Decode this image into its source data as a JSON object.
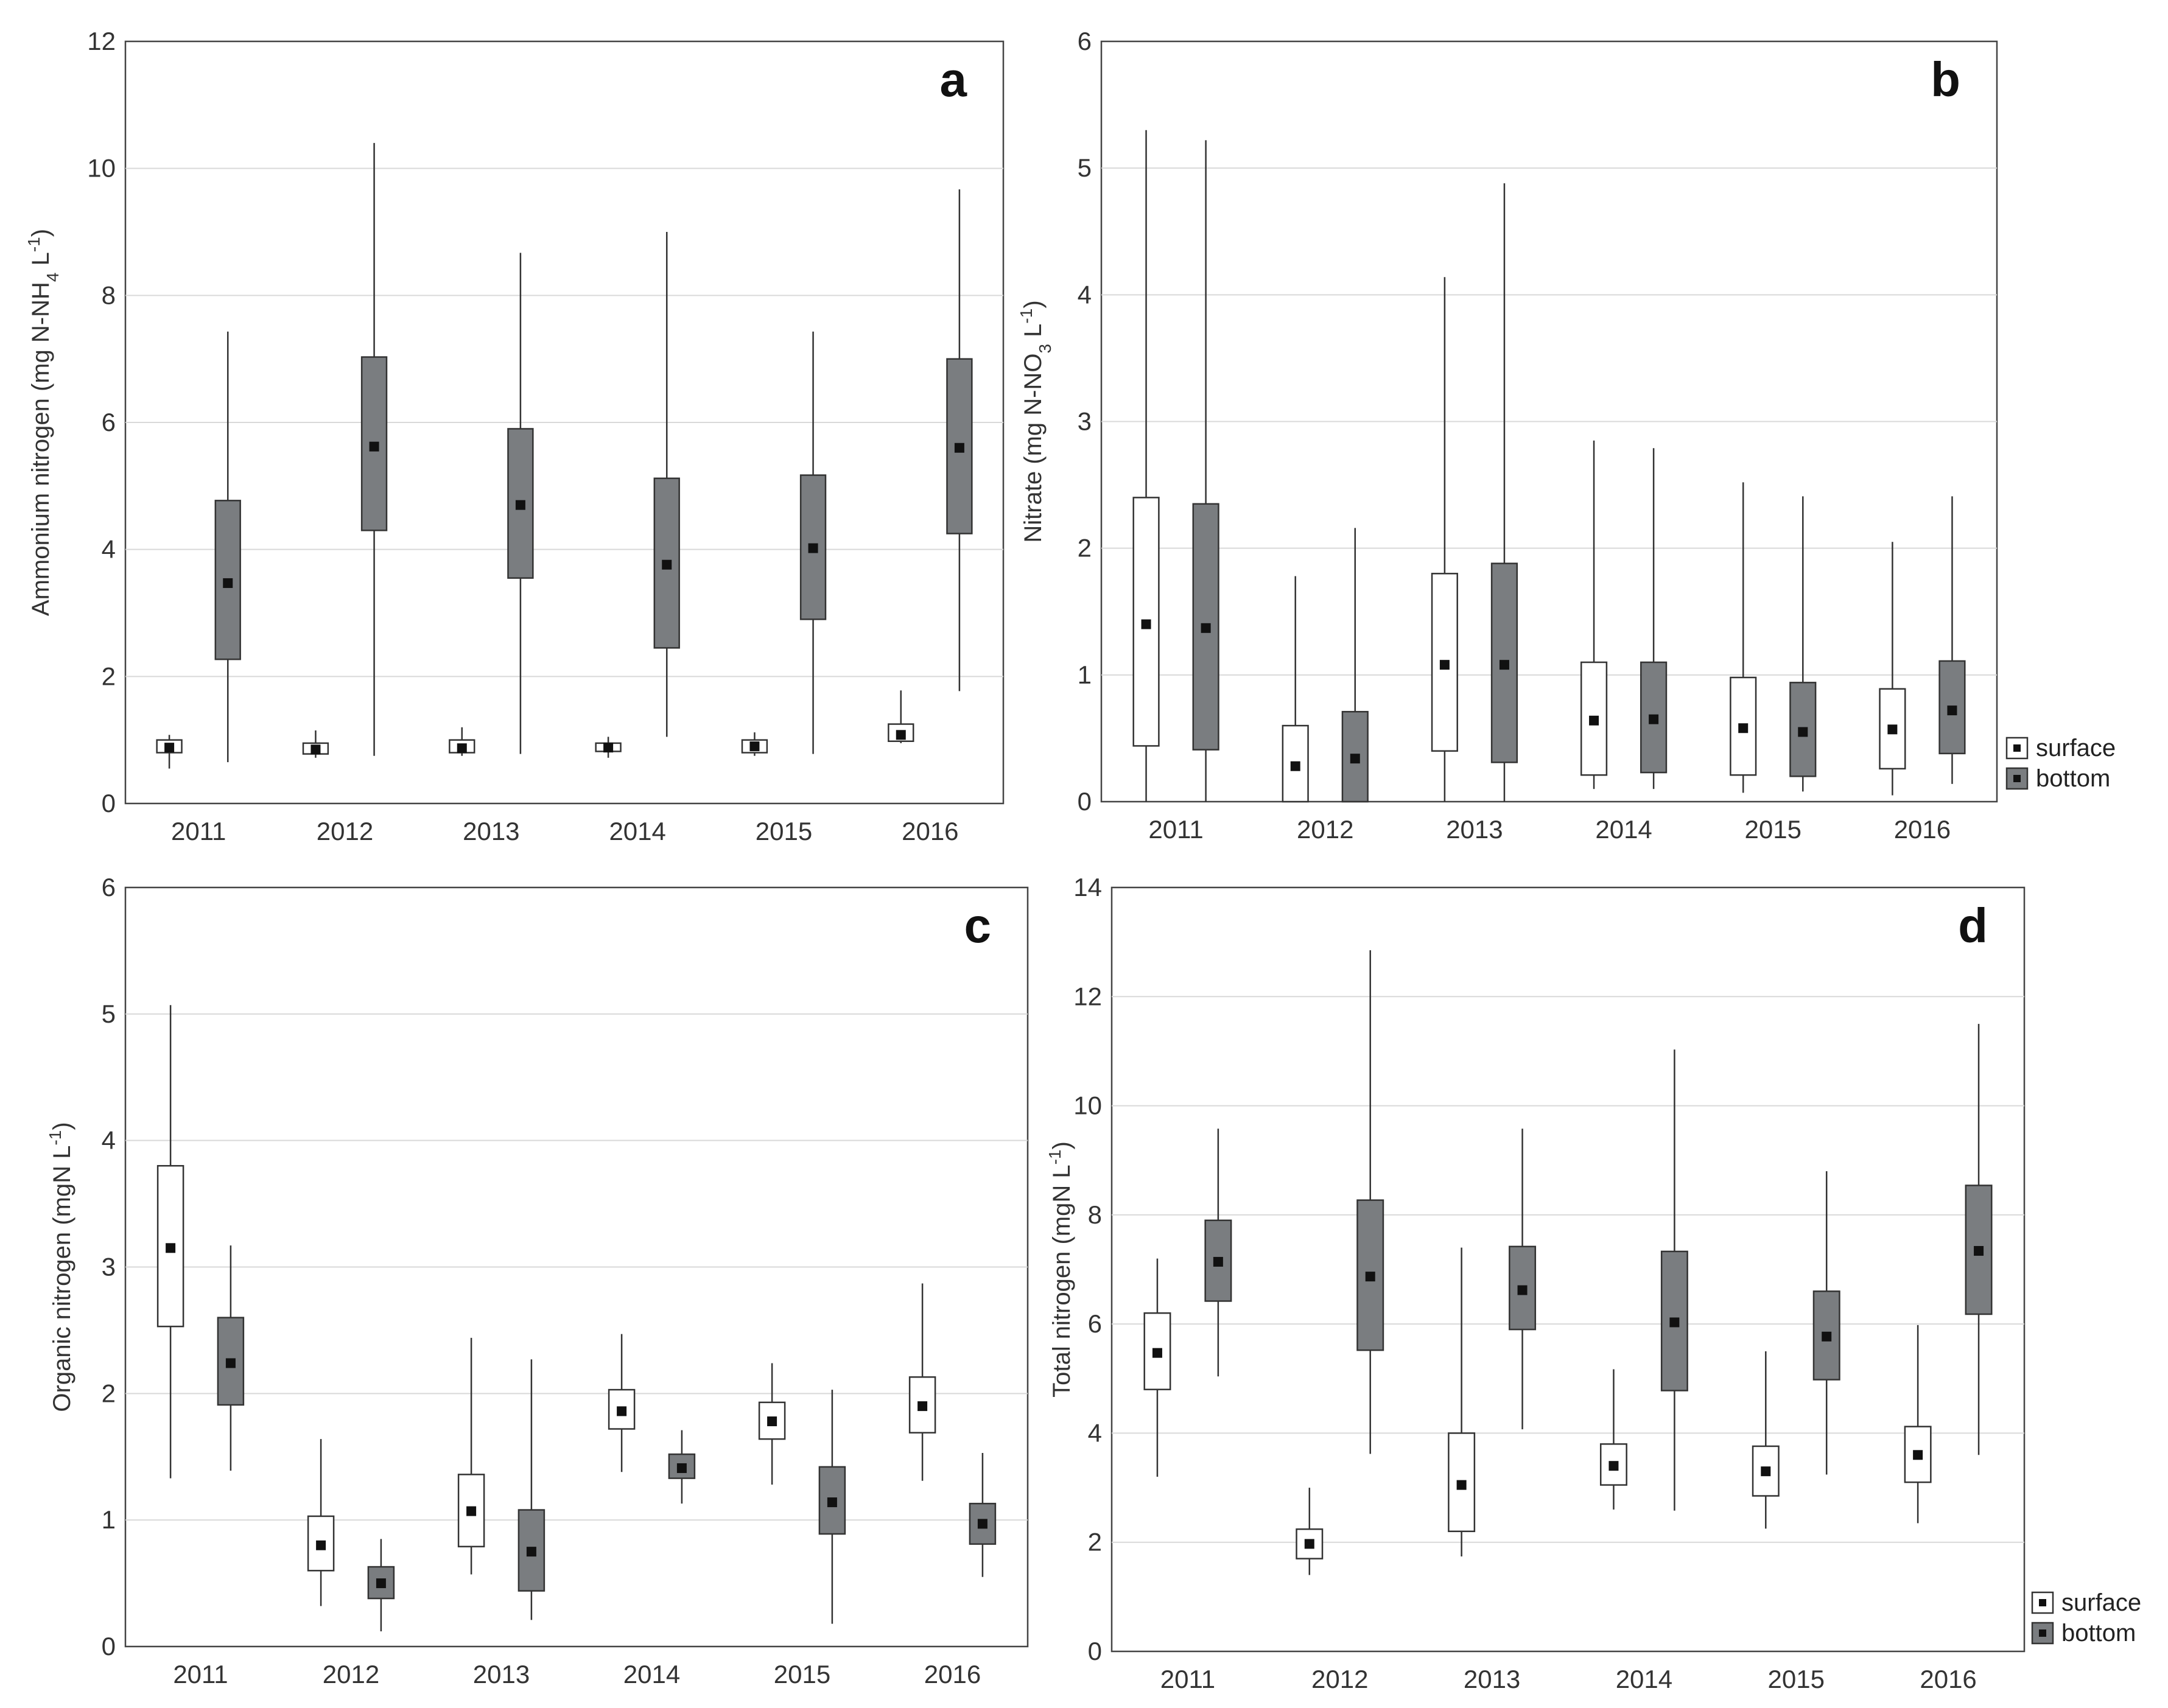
{
  "colors": {
    "surface_fill": "#ffffff",
    "bottom_fill": "#7a7d80",
    "median_marker": "#111111",
    "grid": "#d9d9d9"
  },
  "legend": {
    "surface": "surface",
    "bottom": "bottom"
  },
  "chart_data": [
    {
      "type": "boxplot",
      "panel": "a",
      "ylabel": "Ammonium nitrogen (mg N-NH",
      "ylabel_sub": "4",
      "ylabel_tail": " L",
      "ylabel_sup": "-1",
      "ylabel_end": ")",
      "ylim": [
        0,
        12
      ],
      "yticks": [
        0,
        2,
        4,
        6,
        8,
        10,
        12
      ],
      "categories": [
        "2011",
        "2012",
        "2013",
        "2014",
        "2015",
        "2016"
      ],
      "series": [
        {
          "name": "surface",
          "boxes": [
            {
              "min": 0.55,
              "q1": 0.8,
              "median": 0.88,
              "q3": 1.0,
              "max": 1.08
            },
            {
              "min": 0.72,
              "q1": 0.78,
              "median": 0.85,
              "q3": 0.95,
              "max": 1.15
            },
            {
              "min": 0.75,
              "q1": 0.8,
              "median": 0.87,
              "q3": 1.0,
              "max": 1.2
            },
            {
              "min": 0.72,
              "q1": 0.82,
              "median": 0.88,
              "q3": 0.95,
              "max": 1.05
            },
            {
              "min": 0.75,
              "q1": 0.8,
              "median": 0.9,
              "q3": 1.0,
              "max": 1.12
            },
            {
              "min": 0.95,
              "q1": 0.98,
              "median": 1.08,
              "q3": 1.25,
              "max": 1.78
            }
          ]
        },
        {
          "name": "bottom",
          "boxes": [
            {
              "min": 0.65,
              "q1": 2.27,
              "median": 3.47,
              "q3": 4.77,
              "max": 7.43
            },
            {
              "min": 0.75,
              "q1": 4.3,
              "median": 5.62,
              "q3": 7.03,
              "max": 10.4
            },
            {
              "min": 0.78,
              "q1": 3.55,
              "median": 4.7,
              "q3": 5.9,
              "max": 8.67
            },
            {
              "min": 1.05,
              "q1": 2.45,
              "median": 3.76,
              "q3": 5.12,
              "max": 9.0
            },
            {
              "min": 0.78,
              "q1": 2.9,
              "median": 4.02,
              "q3": 5.17,
              "max": 7.43
            },
            {
              "min": 1.77,
              "q1": 4.25,
              "median": 5.6,
              "q3": 7.0,
              "max": 9.67
            }
          ]
        }
      ]
    },
    {
      "type": "boxplot",
      "panel": "b",
      "ylabel": "Nitrate (mg N-NO",
      "ylabel_sub": "3",
      "ylabel_tail": " L",
      "ylabel_sup": "-1",
      "ylabel_end": ")",
      "ylim": [
        0,
        6
      ],
      "yticks": [
        0,
        1,
        2,
        3,
        4,
        5,
        6
      ],
      "categories": [
        "2011",
        "2012",
        "2013",
        "2014",
        "2015",
        "2016"
      ],
      "series": [
        {
          "name": "surface",
          "boxes": [
            {
              "min": 0,
              "q1": 0.44,
              "median": 1.4,
              "q3": 2.4,
              "max": 5.3
            },
            {
              "min": 0,
              "q1": 0,
              "median": 0.28,
              "q3": 0.6,
              "max": 1.78
            },
            {
              "min": 0,
              "q1": 0.4,
              "median": 1.08,
              "q3": 1.8,
              "max": 4.14
            },
            {
              "min": 0.1,
              "q1": 0.21,
              "median": 0.64,
              "q3": 1.1,
              "max": 2.85
            },
            {
              "min": 0.07,
              "q1": 0.21,
              "median": 0.58,
              "q3": 0.98,
              "max": 2.52
            },
            {
              "min": 0.05,
              "q1": 0.26,
              "median": 0.57,
              "q3": 0.89,
              "max": 2.05
            }
          ]
        },
        {
          "name": "bottom",
          "boxes": [
            {
              "min": 0,
              "q1": 0.41,
              "median": 1.37,
              "q3": 2.35,
              "max": 5.22
            },
            {
              "min": 0,
              "q1": 0,
              "median": 0.34,
              "q3": 0.71,
              "max": 2.16
            },
            {
              "min": 0,
              "q1": 0.31,
              "median": 1.08,
              "q3": 1.88,
              "max": 4.88
            },
            {
              "min": 0.1,
              "q1": 0.23,
              "median": 0.65,
              "q3": 1.1,
              "max": 2.79
            },
            {
              "min": 0.08,
              "q1": 0.2,
              "median": 0.55,
              "q3": 0.94,
              "max": 2.41
            },
            {
              "min": 0.14,
              "q1": 0.38,
              "median": 0.72,
              "q3": 1.11,
              "max": 2.41
            }
          ]
        }
      ]
    },
    {
      "type": "boxplot",
      "panel": "c",
      "ylabel": "Organic nitrogen (mgN L",
      "ylabel_sub": "",
      "ylabel_tail": "",
      "ylabel_sup": "-1",
      "ylabel_end": ")",
      "ylim": [
        0,
        6
      ],
      "yticks": [
        0,
        1,
        2,
        3,
        4,
        5,
        6
      ],
      "categories": [
        "2011",
        "2012",
        "2013",
        "2014",
        "2015",
        "2016"
      ],
      "series": [
        {
          "name": "surface",
          "boxes": [
            {
              "min": 1.33,
              "q1": 2.53,
              "median": 3.15,
              "q3": 3.8,
              "max": 5.07
            },
            {
              "min": 0.32,
              "q1": 0.6,
              "median": 0.8,
              "q3": 1.03,
              "max": 1.64
            },
            {
              "min": 0.57,
              "q1": 0.79,
              "median": 1.07,
              "q3": 1.36,
              "max": 2.44
            },
            {
              "min": 1.38,
              "q1": 1.72,
              "median": 1.86,
              "q3": 2.03,
              "max": 2.47
            },
            {
              "min": 1.28,
              "q1": 1.64,
              "median": 1.78,
              "q3": 1.93,
              "max": 2.24
            },
            {
              "min": 1.31,
              "q1": 1.69,
              "median": 1.9,
              "q3": 2.13,
              "max": 2.87
            }
          ]
        },
        {
          "name": "bottom",
          "boxes": [
            {
              "min": 1.39,
              "q1": 1.91,
              "median": 2.24,
              "q3": 2.6,
              "max": 3.17
            },
            {
              "min": 0.12,
              "q1": 0.38,
              "median": 0.5,
              "q3": 0.63,
              "max": 0.85
            },
            {
              "min": 0.21,
              "q1": 0.44,
              "median": 0.75,
              "q3": 1.08,
              "max": 2.27
            },
            {
              "min": 1.13,
              "q1": 1.33,
              "median": 1.41,
              "q3": 1.52,
              "max": 1.71
            },
            {
              "min": 0.18,
              "q1": 0.89,
              "median": 1.14,
              "q3": 1.42,
              "max": 2.03
            },
            {
              "min": 0.55,
              "q1": 0.81,
              "median": 0.97,
              "q3": 1.13,
              "max": 1.53
            }
          ]
        }
      ]
    },
    {
      "type": "boxplot",
      "panel": "d",
      "ylabel": "Total nitrogen (mgN L",
      "ylabel_sub": "",
      "ylabel_tail": "",
      "ylabel_sup": "-1",
      "ylabel_end": ")",
      "ylim": [
        0,
        14
      ],
      "yticks": [
        0,
        2,
        4,
        6,
        8,
        10,
        12,
        14
      ],
      "categories": [
        "2011",
        "2012",
        "2013",
        "2014",
        "2015",
        "2016"
      ],
      "series": [
        {
          "name": "surface",
          "boxes": [
            {
              "min": 3.2,
              "q1": 4.8,
              "median": 5.47,
              "q3": 6.2,
              "max": 7.2
            },
            {
              "min": 1.4,
              "q1": 1.7,
              "median": 1.97,
              "q3": 2.24,
              "max": 3.0
            },
            {
              "min": 1.74,
              "q1": 2.2,
              "median": 3.05,
              "q3": 4.0,
              "max": 7.4
            },
            {
              "min": 2.6,
              "q1": 3.05,
              "median": 3.4,
              "q3": 3.8,
              "max": 5.17
            },
            {
              "min": 2.25,
              "q1": 2.85,
              "median": 3.3,
              "q3": 3.76,
              "max": 5.5
            },
            {
              "min": 2.35,
              "q1": 3.1,
              "median": 3.6,
              "q3": 4.12,
              "max": 5.98
            }
          ]
        },
        {
          "name": "bottom",
          "boxes": [
            {
              "min": 5.04,
              "q1": 6.42,
              "median": 7.14,
              "q3": 7.9,
              "max": 9.58
            },
            {
              "min": 3.62,
              "q1": 5.52,
              "median": 6.87,
              "q3": 8.27,
              "max": 12.85
            },
            {
              "min": 4.07,
              "q1": 5.9,
              "median": 6.62,
              "q3": 7.42,
              "max": 9.58
            },
            {
              "min": 2.58,
              "q1": 4.78,
              "median": 6.03,
              "q3": 7.33,
              "max": 11.03
            },
            {
              "min": 3.24,
              "q1": 4.98,
              "median": 5.77,
              "q3": 6.6,
              "max": 8.8
            },
            {
              "min": 3.6,
              "q1": 6.18,
              "median": 7.34,
              "q3": 8.54,
              "max": 11.5
            }
          ]
        }
      ]
    }
  ]
}
